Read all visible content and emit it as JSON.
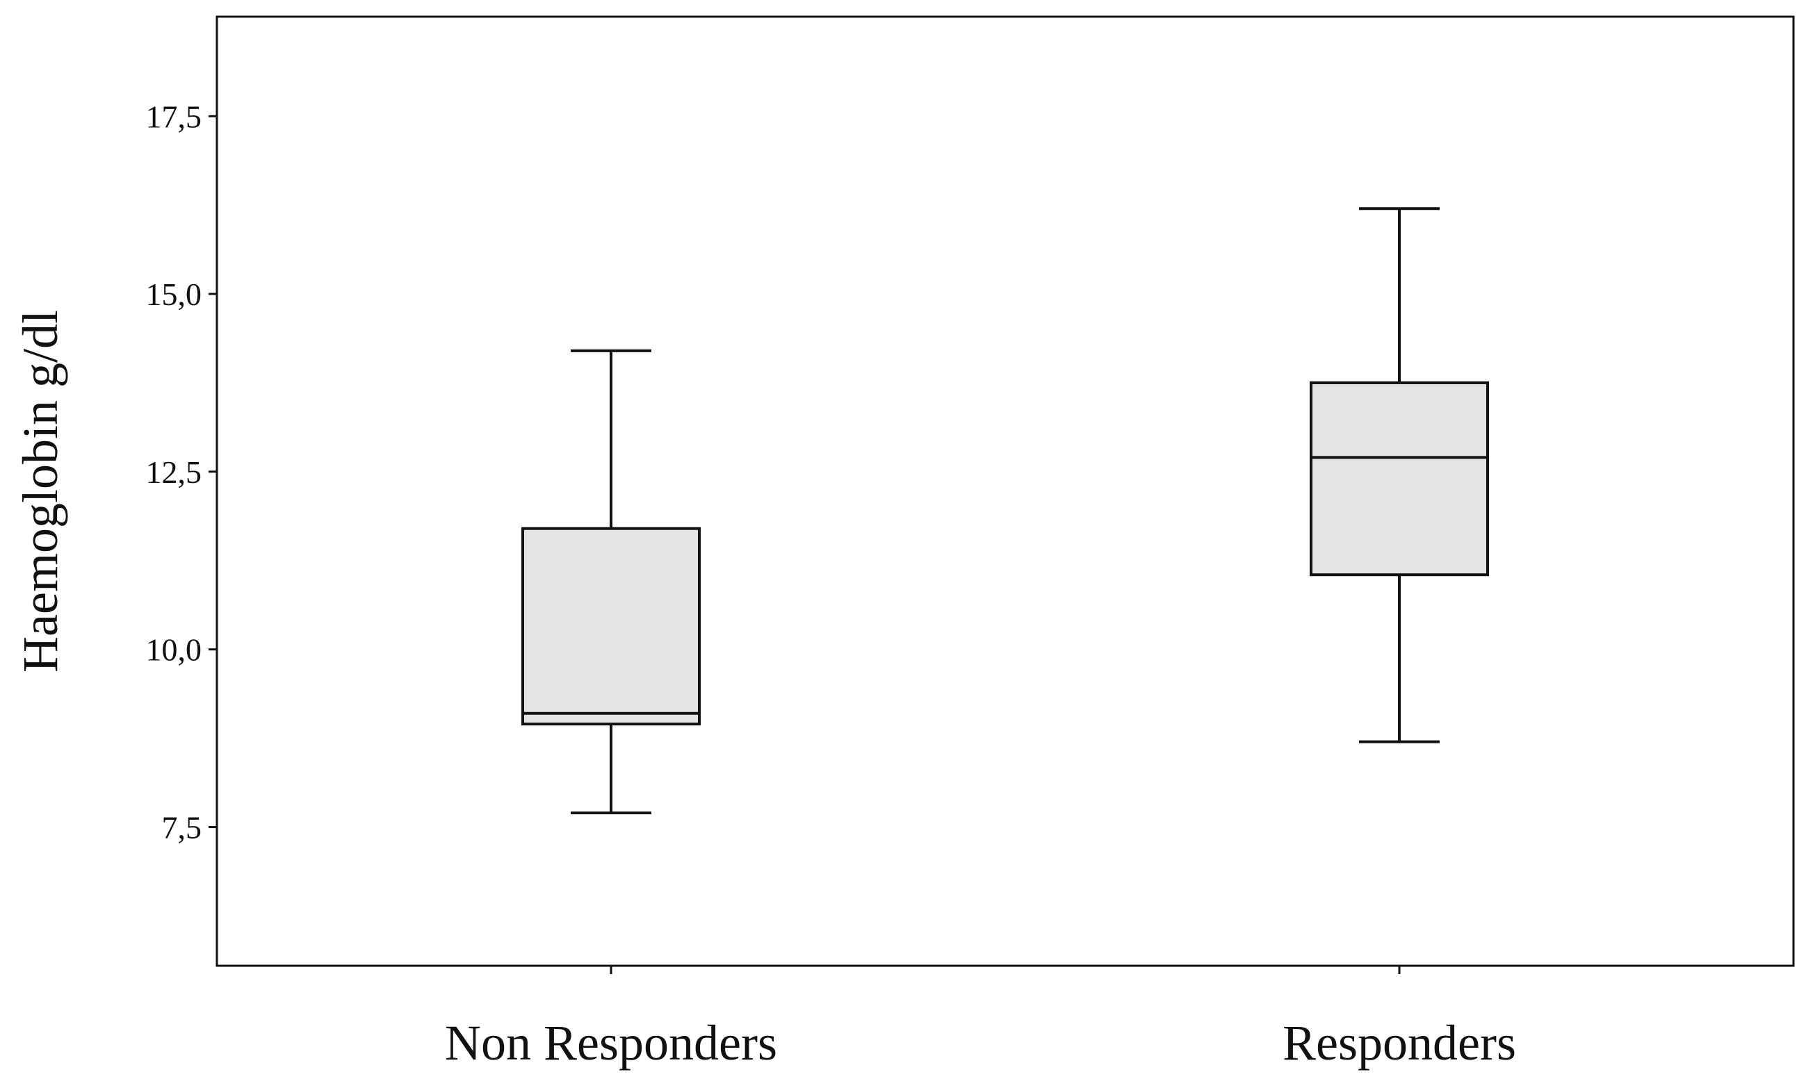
{
  "chart_data": {
    "type": "boxplot",
    "ylabel": "Haemoglobin  g/dl",
    "xlabel": "",
    "ylim": [
      5.55,
      18.9
    ],
    "yticks": [
      7.5,
      10.0,
      12.5,
      15.0,
      17.5
    ],
    "ytick_labels": [
      "7,5",
      "10,0",
      "12,5",
      "15,0",
      "17,5"
    ],
    "categories": [
      "Non Responders",
      "Responders"
    ],
    "boxes": [
      {
        "category": "Non Responders",
        "min": 7.7,
        "q1": 8.95,
        "median": 9.1,
        "q3": 11.7,
        "max": 14.2
      },
      {
        "category": "Responders",
        "min": 8.7,
        "q1": 11.05,
        "median": 12.7,
        "q3": 13.75,
        "max": 16.2
      }
    ],
    "grid": false,
    "colors": {
      "box_fill": "#e4e4e4",
      "stroke": "#111111",
      "background": "#ffffff"
    }
  }
}
